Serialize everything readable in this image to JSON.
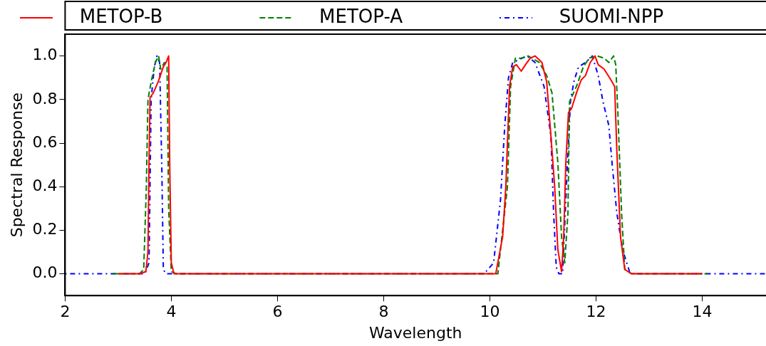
{
  "chart_data": {
    "type": "line",
    "xlabel": "Wavelength",
    "ylabel": "Spectral Response",
    "xlim": [
      2,
      15.2
    ],
    "xticks": [
      2,
      4,
      6,
      8,
      10,
      12,
      14
    ],
    "ylim": [
      -0.1,
      1.1
    ],
    "yticks": [
      {
        "value": 0,
        "label": "0.0"
      },
      0.2,
      0.4,
      0.6,
      0.8,
      {
        "value": 1,
        "label": "1.0"
      }
    ],
    "legend": "top",
    "grid": false,
    "marker": "none",
    "series": [
      {
        "name": "METOP-B",
        "color": "#ff0000",
        "line_style": "solid",
        "x": [
          3.0,
          3.4,
          3.52,
          3.56,
          3.58,
          3.6,
          3.66,
          3.75,
          3.85,
          3.9,
          3.95,
          3.97,
          4.0,
          4.05,
          4.2,
          10.0,
          10.11,
          10.24,
          10.3,
          10.37,
          10.43,
          10.5,
          10.59,
          10.67,
          10.76,
          10.85,
          10.98,
          11.07,
          11.15,
          11.22,
          11.28,
          11.35,
          11.39,
          11.43,
          11.48,
          11.54,
          11.63,
          11.72,
          11.8,
          11.89,
          11.98,
          12.04,
          12.15,
          12.28,
          12.35,
          12.39,
          12.46,
          12.54,
          12.67,
          14.0
        ],
        "values": [
          0,
          0,
          0.01,
          0.1,
          0.5,
          0.81,
          0.83,
          0.88,
          0.95,
          0.97,
          1.0,
          0.5,
          0.05,
          0,
          0,
          0,
          0.0,
          0.17,
          0.4,
          0.86,
          0.95,
          0.96,
          0.93,
          0.96,
          0.99,
          1.0,
          0.97,
          0.88,
          0.63,
          0.4,
          0.11,
          0.01,
          0.17,
          0.51,
          0.74,
          0.76,
          0.83,
          0.89,
          0.91,
          0.97,
          1.0,
          0.96,
          0.94,
          0.89,
          0.86,
          0.57,
          0.17,
          0.02,
          0,
          0
        ]
      },
      {
        "name": "METOP-A",
        "color": "#008000",
        "line_style": "dashed",
        "x": [
          2.9,
          3.4,
          3.48,
          3.53,
          3.56,
          3.62,
          3.7,
          3.76,
          3.8,
          3.87,
          3.92,
          3.95,
          4.0,
          4.1,
          10.0,
          10.15,
          10.33,
          10.39,
          10.48,
          10.59,
          10.72,
          10.93,
          11.07,
          11.17,
          11.28,
          11.35,
          11.41,
          11.47,
          11.5,
          11.63,
          11.76,
          11.87,
          12.02,
          12.15,
          12.24,
          12.33,
          12.37,
          12.41,
          12.48,
          12.54,
          12.67,
          14.1
        ],
        "values": [
          0,
          0,
          0.02,
          0.4,
          0.8,
          0.88,
          0.97,
          1.0,
          0.94,
          0.97,
          0.95,
          0.3,
          0.01,
          0,
          0,
          0,
          0.4,
          0.86,
          0.99,
          0.99,
          1.0,
          0.97,
          0.91,
          0.83,
          0.51,
          0.17,
          0.05,
          0.28,
          0.79,
          0.86,
          0.95,
          0.99,
          1.0,
          0.99,
          0.97,
          1.0,
          0.96,
          0.74,
          0.28,
          0.02,
          0,
          0
        ]
      },
      {
        "name": "SUOMI-NPP",
        "color": "#0000ff",
        "line_style": "dotted",
        "x": [
          2.0,
          3.5,
          3.58,
          3.62,
          3.68,
          3.73,
          3.78,
          3.82,
          3.85,
          3.9,
          9.89,
          10.07,
          10.2,
          10.28,
          10.35,
          10.43,
          10.7,
          10.85,
          11.02,
          11.15,
          11.2,
          11.25,
          11.3,
          11.37,
          11.46,
          11.52,
          11.59,
          11.67,
          11.8,
          11.93,
          12.04,
          12.13,
          12.24,
          12.3,
          12.39,
          12.5,
          12.63,
          12.72,
          15.2
        ],
        "values": [
          0,
          0,
          0.05,
          0.8,
          0.95,
          1.0,
          0.97,
          0.5,
          0.02,
          0,
          0,
          0.05,
          0.34,
          0.68,
          0.9,
          0.97,
          1.0,
          0.97,
          0.86,
          0.63,
          0.28,
          0.03,
          0,
          0,
          0.51,
          0.8,
          0.89,
          0.95,
          0.97,
          1.0,
          0.91,
          0.79,
          0.68,
          0.51,
          0.28,
          0.11,
          0.01,
          0,
          0
        ]
      }
    ]
  }
}
